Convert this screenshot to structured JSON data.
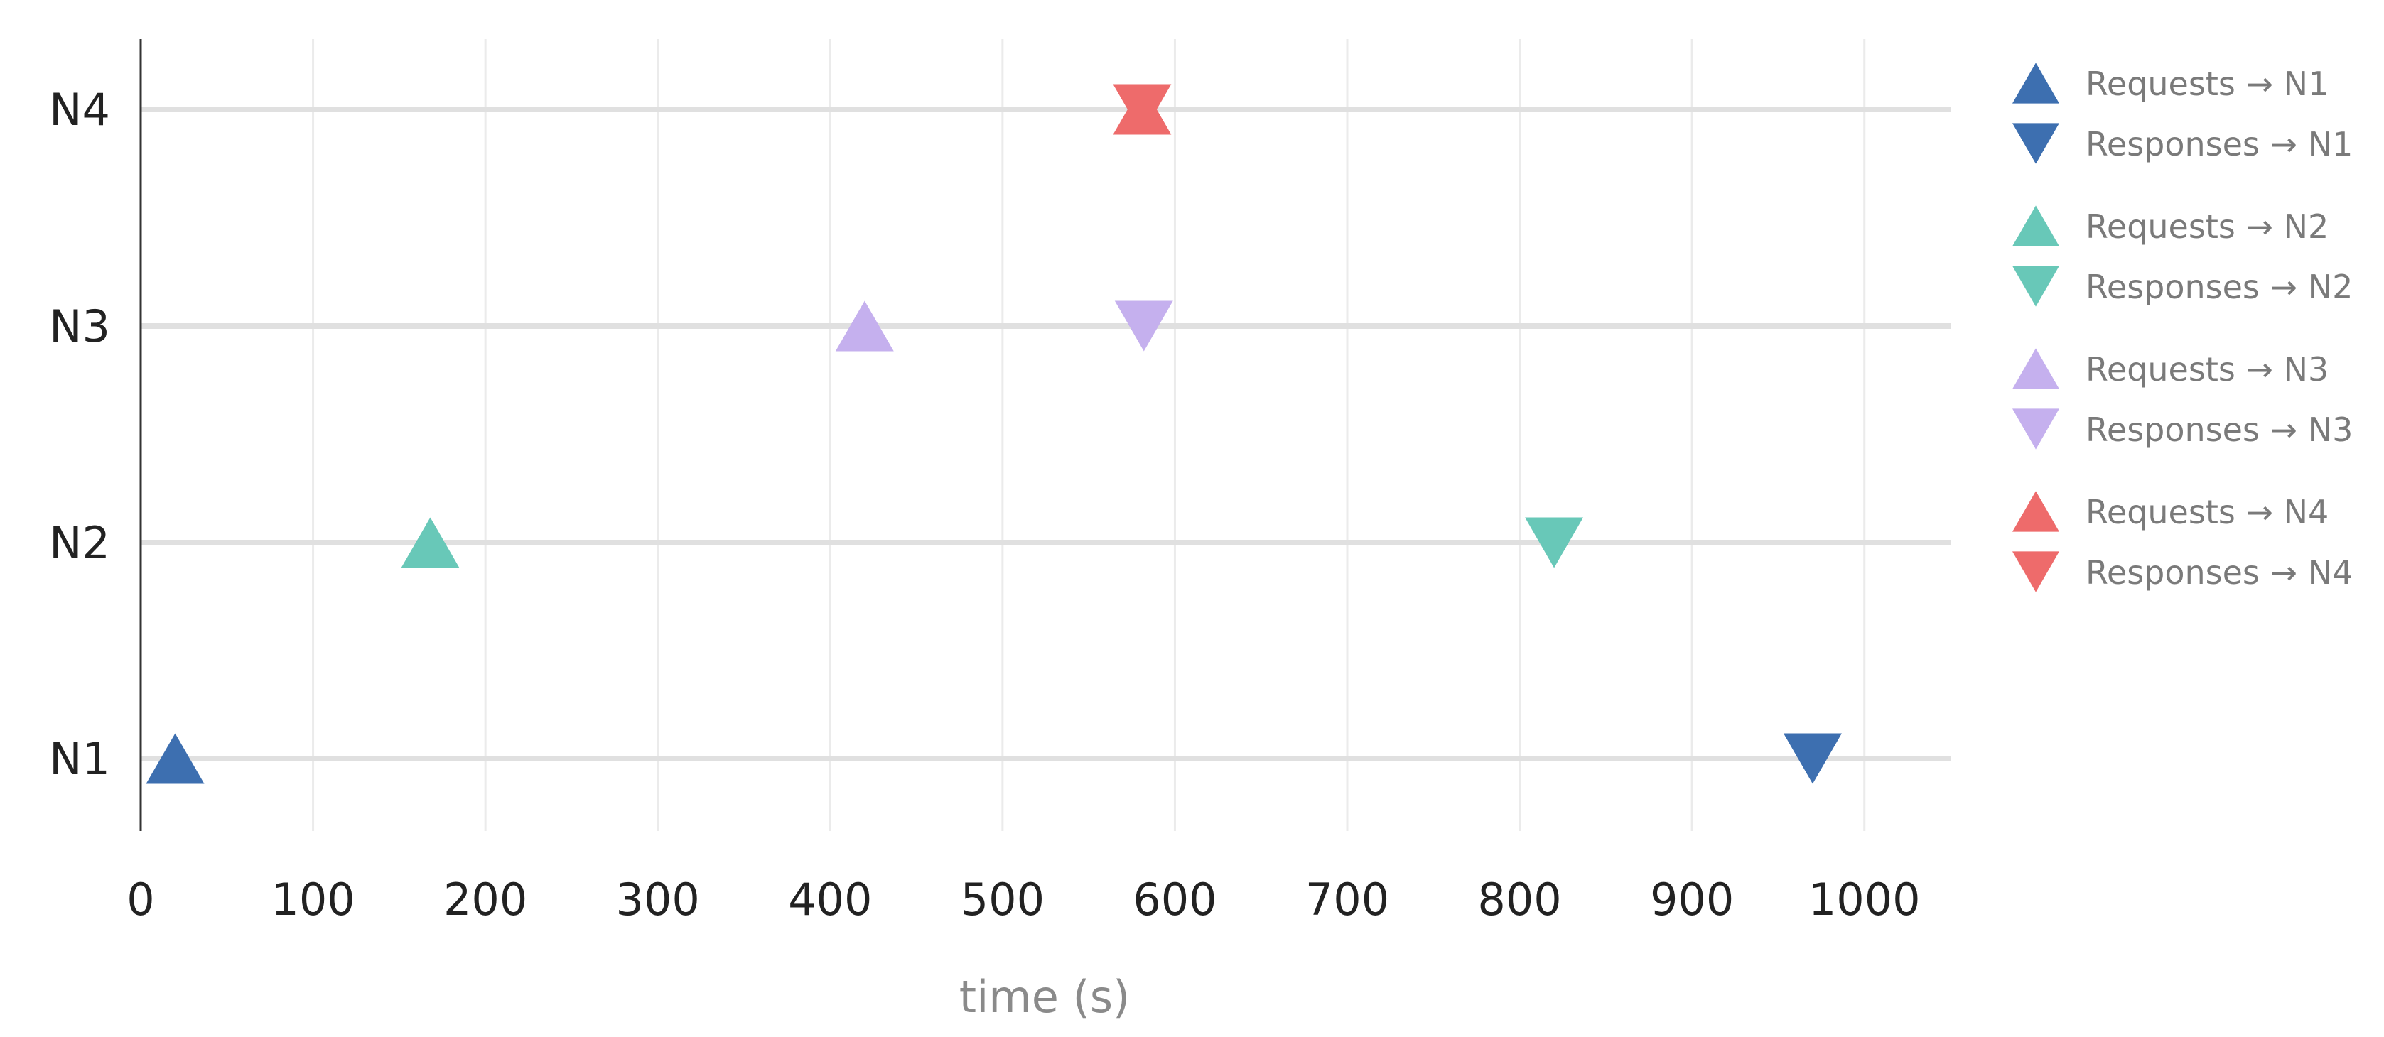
{
  "chart_data": {
    "type": "scatter",
    "title": "",
    "xlabel": "time (s)",
    "ylabel": "",
    "xlim": [
      0,
      1050
    ],
    "x_ticks": [
      0,
      100,
      200,
      300,
      400,
      500,
      600,
      700,
      800,
      900,
      1000
    ],
    "y_categories": [
      "N1",
      "N2",
      "N3",
      "N4"
    ],
    "grid": true,
    "legend_position": "right",
    "series": [
      {
        "name": "Requests → N1",
        "marker": "triangle-up",
        "color": "#3d6fb0",
        "points": [
          {
            "x": 20,
            "y": "N1"
          }
        ]
      },
      {
        "name": "Responses → N1",
        "marker": "triangle-down",
        "color": "#3d6fb0",
        "points": [
          {
            "x": 970,
            "y": "N1"
          }
        ]
      },
      {
        "name": "Requests → N2",
        "marker": "triangle-up",
        "color": "#68c8b8",
        "points": [
          {
            "x": 168,
            "y": "N2"
          }
        ]
      },
      {
        "name": "Responses → N2",
        "marker": "triangle-down",
        "color": "#68c8b8",
        "points": [
          {
            "x": 820,
            "y": "N2"
          }
        ]
      },
      {
        "name": "Requests → N3",
        "marker": "triangle-up",
        "color": "#c5b0ee",
        "points": [
          {
            "x": 420,
            "y": "N3"
          }
        ]
      },
      {
        "name": "Responses → N3",
        "marker": "triangle-down",
        "color": "#c5b0ee",
        "points": [
          {
            "x": 582,
            "y": "N3"
          }
        ]
      },
      {
        "name": "Requests → N4",
        "marker": "triangle-up",
        "color": "#ee6b6b",
        "points": [
          {
            "x": 581,
            "y": "N4"
          }
        ]
      },
      {
        "name": "Responses → N4",
        "marker": "triangle-down",
        "color": "#ee6b6b",
        "points": [
          {
            "x": 581,
            "y": "N4"
          }
        ]
      }
    ]
  }
}
